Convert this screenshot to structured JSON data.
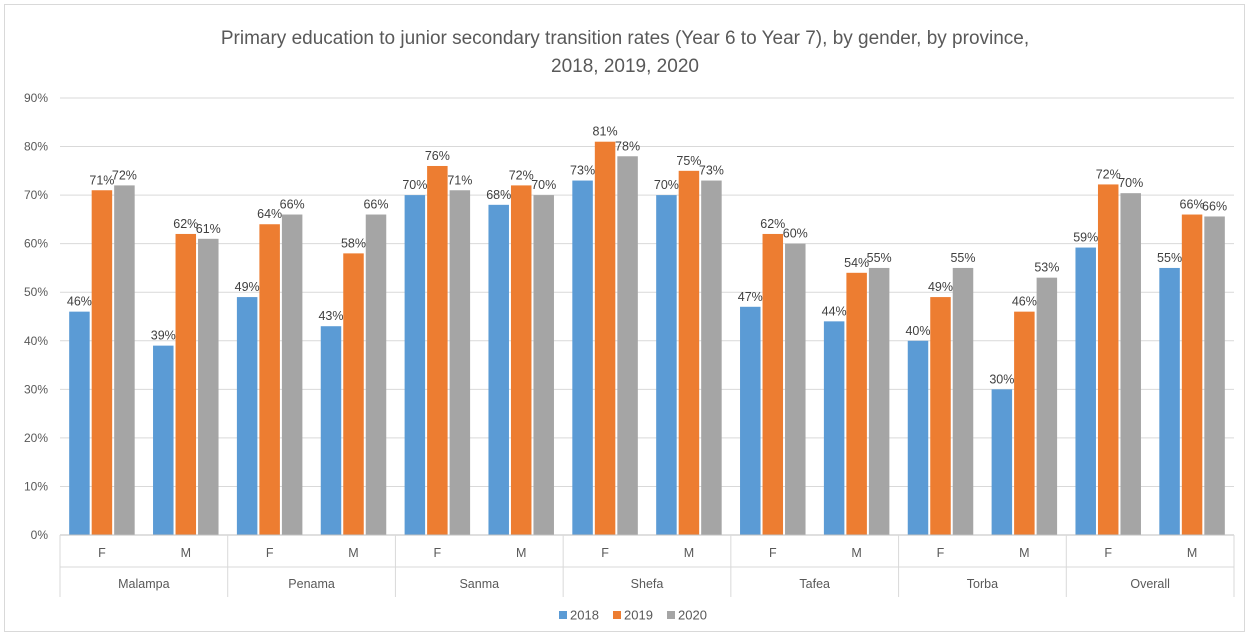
{
  "chart_data": {
    "type": "bar",
    "title": "Primary education to junior secondary transition rates (Year 6 to Year 7), by gender, by province,",
    "subtitle": "2018, 2019, 2020",
    "xlabel": "",
    "ylabel": "",
    "ylim": [
      0,
      90
    ],
    "y_ticks": [
      "0%",
      "10%",
      "20%",
      "30%",
      "40%",
      "50%",
      "60%",
      "70%",
      "80%",
      "90%"
    ],
    "grid": true,
    "legend_position": "bottom",
    "groups": [
      "Malampa",
      "Penama",
      "Sanma",
      "Shefa",
      "Tafea",
      "Torba",
      "Overall"
    ],
    "categories": [
      "F",
      "M",
      "F",
      "M",
      "F",
      "M",
      "F",
      "M",
      "F",
      "M",
      "F",
      "M",
      "F",
      "M"
    ],
    "series": [
      {
        "name": "2018",
        "color": "#5b9bd5",
        "values": [
          46,
          39,
          49,
          43,
          70,
          68,
          73,
          70,
          47,
          44,
          40,
          30,
          59.2,
          55
        ],
        "labels": [
          "46%",
          "39%",
          "49%",
          "43%",
          "70%",
          "68%",
          "73%",
          "70%",
          "47%",
          "44%",
          "40%",
          "30%",
          "59%",
          "55%"
        ]
      },
      {
        "name": "2019",
        "color": "#ed7d31",
        "values": [
          71,
          62,
          64,
          58,
          76,
          72,
          81,
          75,
          62,
          54,
          49,
          46,
          72.2,
          66
        ],
        "labels": [
          "71%",
          "62%",
          "64%",
          "58%",
          "76%",
          "72%",
          "81%",
          "75%",
          "62%",
          "54%",
          "49%",
          "46%",
          "72%",
          "66%"
        ]
      },
      {
        "name": "2020",
        "color": "#a5a5a5",
        "values": [
          72,
          61,
          66,
          66,
          71,
          70,
          78,
          73,
          60,
          55,
          55,
          53,
          70.4,
          65.6
        ],
        "labels": [
          "72%",
          "61%",
          "66%",
          "66%",
          "71%",
          "70%",
          "78%",
          "73%",
          "60%",
          "55%",
          "55%",
          "53%",
          "70%",
          "66%"
        ]
      }
    ]
  }
}
